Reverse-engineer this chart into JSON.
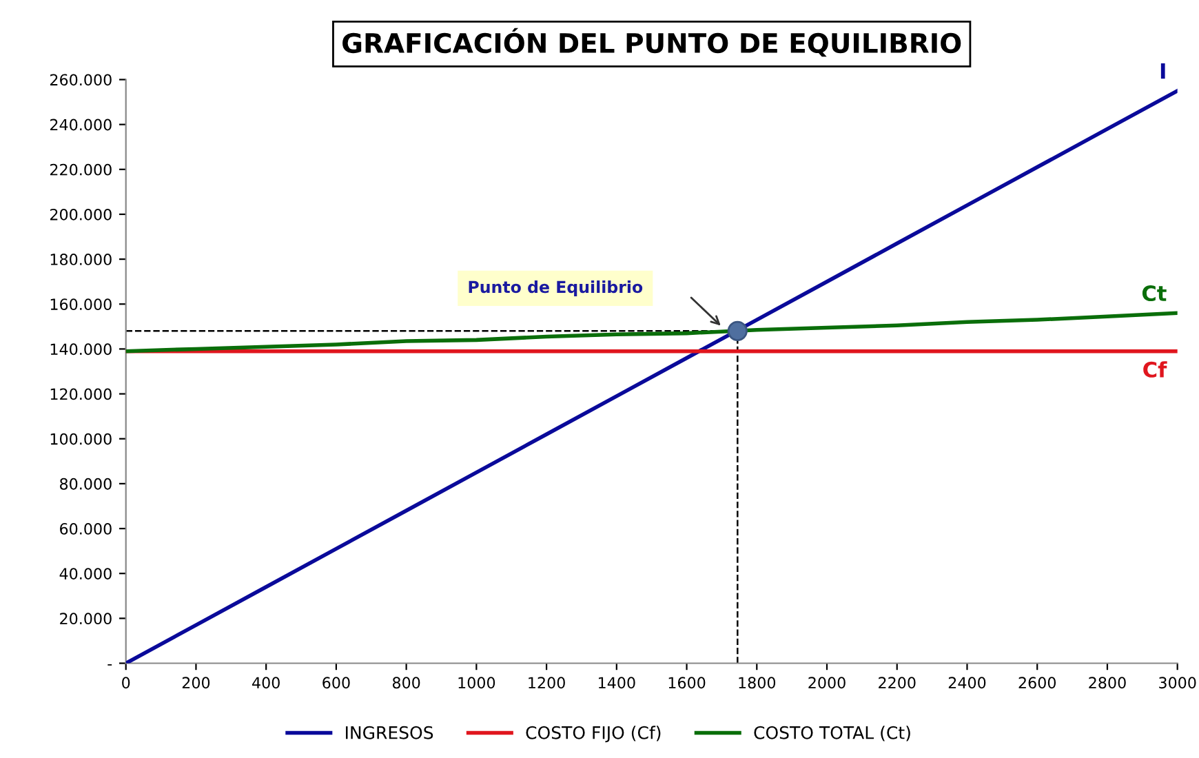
{
  "chart_data": {
    "type": "line",
    "title": "GRAFICACIÓN DEL PUNTO DE EQUILIBRIO",
    "x": [
      0,
      200,
      400,
      600,
      800,
      1000,
      1200,
      1400,
      1600,
      1800,
      2000,
      2200,
      2400,
      2600,
      2800,
      3000
    ],
    "series": [
      {
        "name": "INGRESOS",
        "color": "#0a0a9a",
        "values": [
          0,
          17000,
          34000,
          51000,
          68000,
          85000,
          102000,
          119000,
          136000,
          153000,
          170000,
          187000,
          204000,
          221000,
          238000,
          255000
        ]
      },
      {
        "name": "COSTO FIJO (Cf)",
        "color": "#e0161e",
        "values": [
          139000,
          139000,
          139000,
          139000,
          139000,
          139000,
          139000,
          139000,
          139000,
          139000,
          139000,
          139000,
          139000,
          139000,
          139000,
          139000
        ]
      },
      {
        "name": "COSTO TOTAL (Ct)",
        "color": "#0a6e0a",
        "values": [
          139000,
          140000,
          141000,
          142000,
          143500,
          144000,
          145500,
          146500,
          147000,
          148500,
          149500,
          150500,
          152000,
          153000,
          154500,
          156000
        ]
      },
      {
        "type": "scatter",
        "color": "#4f6f9f",
        "x": [
          1745
        ],
        "values": [
          148000
        ]
      }
    ],
    "ref_lines": [
      {
        "axis": "x",
        "value": 1745,
        "color": "#000000",
        "line_style": "dashed"
      },
      {
        "axis": "y",
        "value": 148000,
        "color": "#000000",
        "line_style": "dashed"
      }
    ],
    "annotations": [
      "Punto de Equilibrio",
      "I",
      "Cf",
      "Ct"
    ],
    "xlim": [
      0,
      3000
    ],
    "xticks": [
      0,
      200,
      400,
      600,
      800,
      1000,
      1200,
      1400,
      1600,
      1800,
      2000,
      2200,
      2400,
      2600,
      2800,
      3000
    ],
    "ylim": [
      0,
      260000
    ],
    "yticks": [
      {
        "value": 0,
        "label": "-"
      },
      {
        "value": 20000,
        "label": "20.000"
      },
      {
        "value": 40000,
        "label": "40.000"
      },
      {
        "value": 60000,
        "label": "60.000"
      },
      {
        "value": 80000,
        "label": "80.000"
      },
      {
        "value": 100000,
        "label": "100.000"
      },
      {
        "value": 120000,
        "label": "120.000"
      },
      {
        "value": 140000,
        "label": "140.000"
      },
      {
        "value": 160000,
        "label": "160.000"
      },
      {
        "value": 180000,
        "label": "180.000"
      },
      {
        "value": 200000,
        "label": "200.000"
      },
      {
        "value": 220000,
        "label": "220.000"
      },
      {
        "value": 240000,
        "label": "240.000"
      },
      {
        "value": 260000,
        "label": "260.000"
      }
    ],
    "grid": false,
    "legend": "bottom",
    "line_style": "solid"
  }
}
